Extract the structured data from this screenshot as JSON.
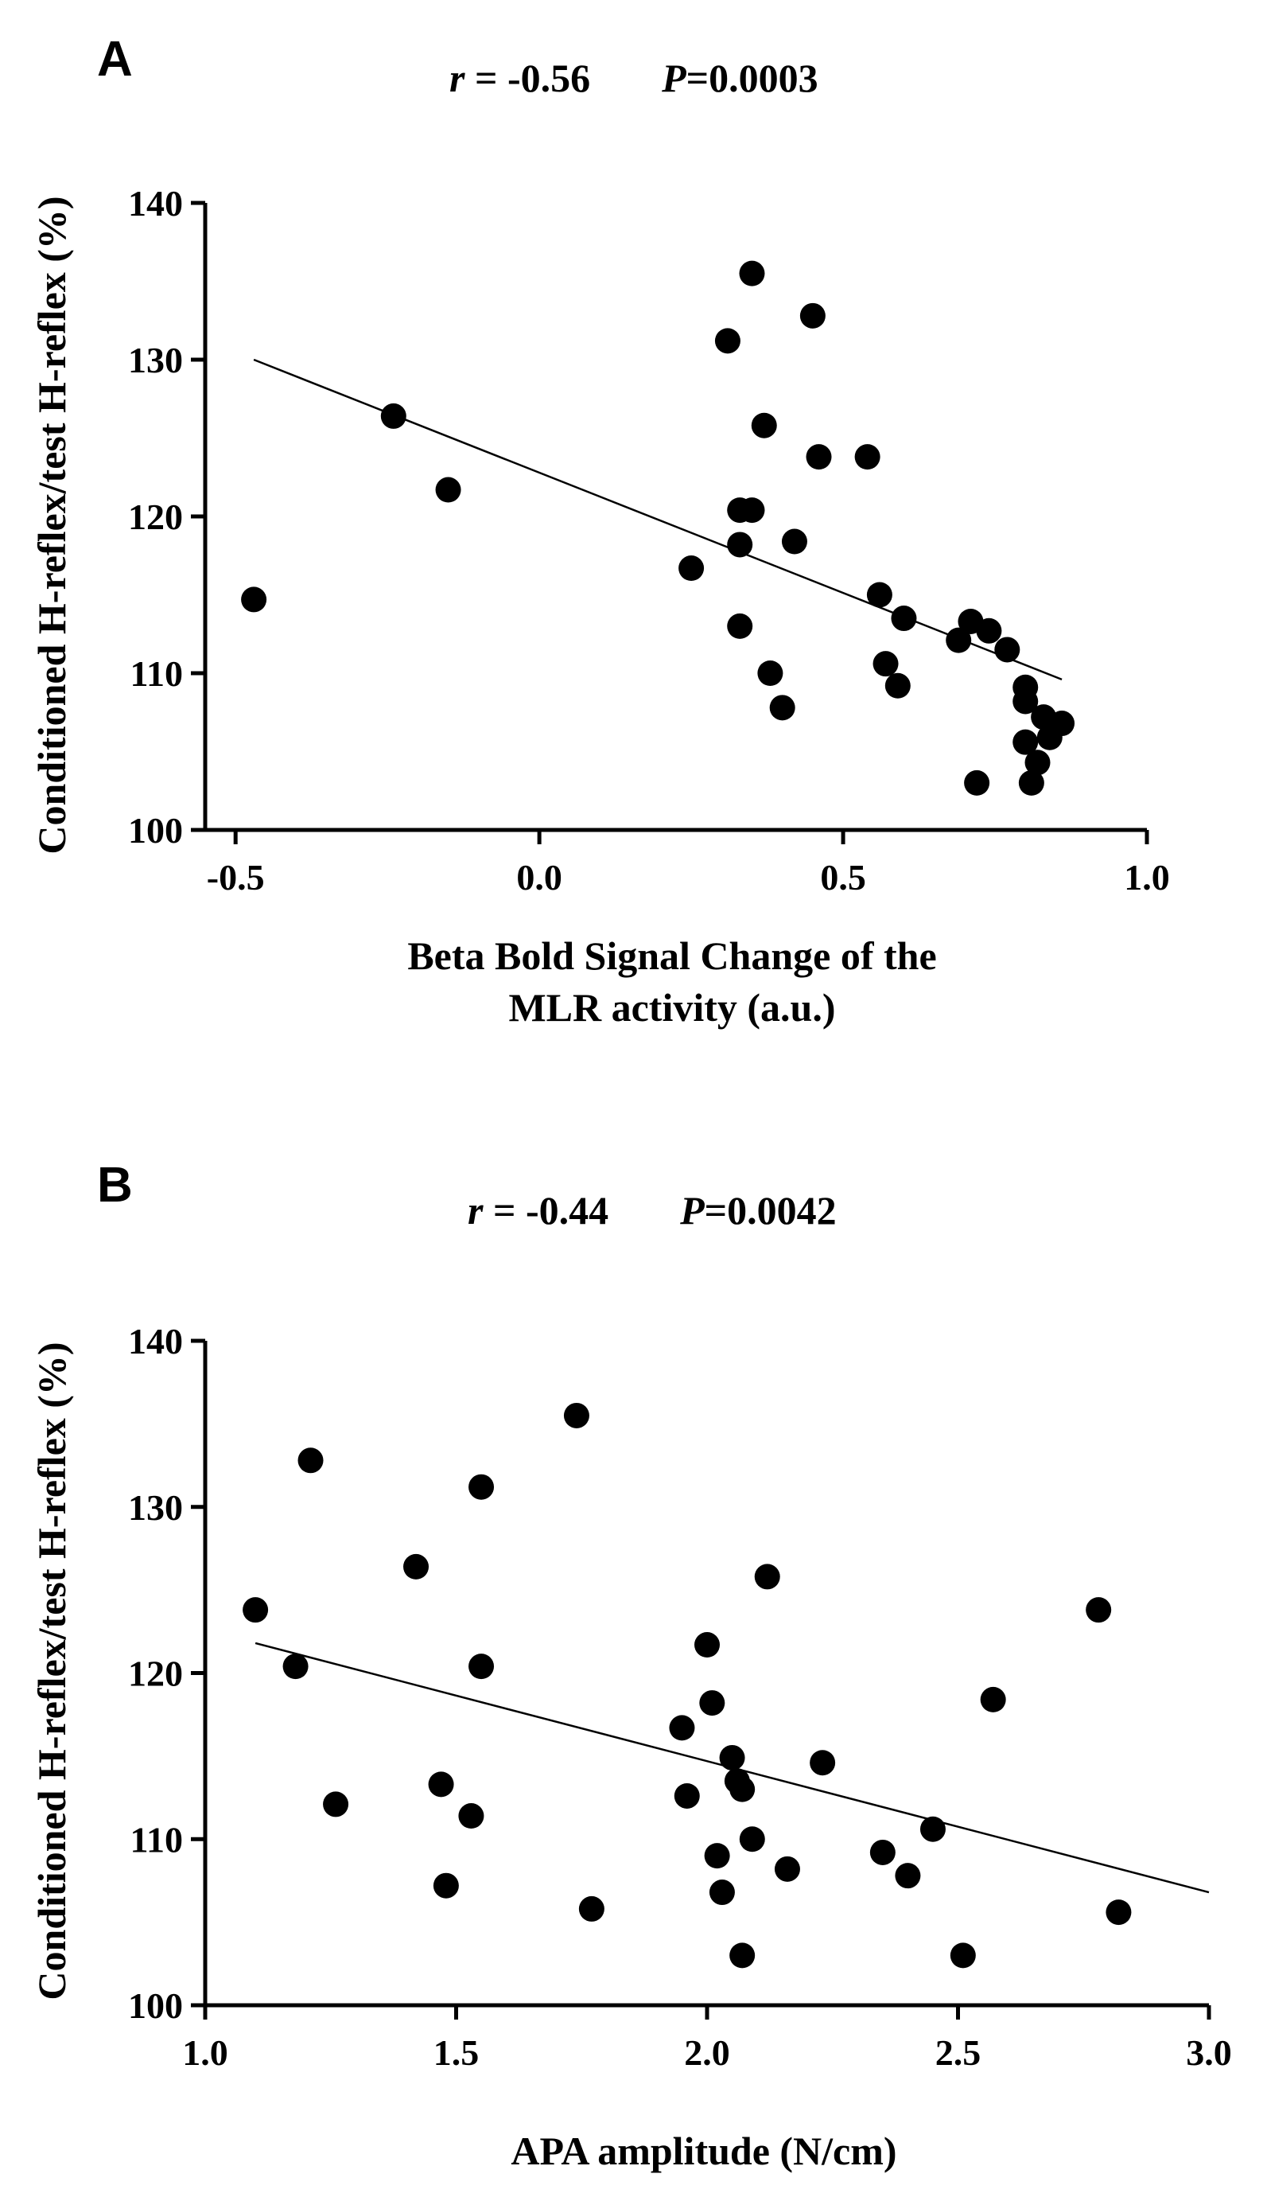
{
  "chart_data": [
    {
      "panel": "A",
      "type": "scatter",
      "stats": {
        "r_label": "r",
        "r_value": " = -0.56",
        "p_label": "P",
        "p_value": "=0.0003"
      },
      "xlabel": [
        "Beta Bold Signal Change of the",
        "MLR activity (a.u.)"
      ],
      "ylabel": "Conditioned H-reflex/test H-reflex (%)",
      "xlim": [
        -0.55,
        1.0
      ],
      "ylim": [
        100,
        140
      ],
      "xticks": [
        -0.5,
        0.0,
        0.5,
        1.0
      ],
      "xtick_labels": [
        "-0.5",
        "0.0",
        "0.5",
        "1.0"
      ],
      "yticks": [
        100,
        110,
        120,
        130,
        140
      ],
      "ytick_labels": [
        "100",
        "110",
        "120",
        "130",
        "140"
      ],
      "regression_line": {
        "x": [
          -0.47,
          0.86
        ],
        "y": [
          130.0,
          109.6
        ]
      },
      "points": [
        {
          "x": -0.47,
          "y": 114.7
        },
        {
          "x": -0.24,
          "y": 126.4
        },
        {
          "x": -0.15,
          "y": 121.7
        },
        {
          "x": 0.25,
          "y": 116.7
        },
        {
          "x": 0.31,
          "y": 131.2
        },
        {
          "x": 0.33,
          "y": 120.4
        },
        {
          "x": 0.33,
          "y": 118.2
        },
        {
          "x": 0.33,
          "y": 113.0
        },
        {
          "x": 0.35,
          "y": 135.5
        },
        {
          "x": 0.35,
          "y": 120.4
        },
        {
          "x": 0.37,
          "y": 125.8
        },
        {
          "x": 0.38,
          "y": 110.0
        },
        {
          "x": 0.4,
          "y": 107.8
        },
        {
          "x": 0.42,
          "y": 118.4
        },
        {
          "x": 0.45,
          "y": 132.8
        },
        {
          "x": 0.46,
          "y": 123.8
        },
        {
          "x": 0.54,
          "y": 123.8
        },
        {
          "x": 0.56,
          "y": 115.0
        },
        {
          "x": 0.57,
          "y": 110.6
        },
        {
          "x": 0.59,
          "y": 109.2
        },
        {
          "x": 0.6,
          "y": 113.5
        },
        {
          "x": 0.69,
          "y": 112.1
        },
        {
          "x": 0.71,
          "y": 113.3
        },
        {
          "x": 0.72,
          "y": 103.0
        },
        {
          "x": 0.74,
          "y": 112.7
        },
        {
          "x": 0.77,
          "y": 111.5
        },
        {
          "x": 0.8,
          "y": 109.1
        },
        {
          "x": 0.8,
          "y": 108.2
        },
        {
          "x": 0.8,
          "y": 105.6
        },
        {
          "x": 0.81,
          "y": 103.0
        },
        {
          "x": 0.82,
          "y": 104.3
        },
        {
          "x": 0.83,
          "y": 107.2
        },
        {
          "x": 0.84,
          "y": 105.9
        },
        {
          "x": 0.86,
          "y": 106.8
        }
      ]
    },
    {
      "panel": "B",
      "type": "scatter",
      "stats": {
        "r_label": "r",
        "r_value": " = -0.44",
        "p_label": "P",
        "p_value": "=0.0042"
      },
      "xlabel": [
        "APA amplitude (N/cm)"
      ],
      "ylabel": "Conditioned H-reflex/test H-reflex (%)",
      "xlim": [
        1.0,
        3.0
      ],
      "ylim": [
        100,
        140
      ],
      "xticks": [
        1.0,
        1.5,
        2.0,
        2.5,
        3.0
      ],
      "xtick_labels": [
        "1.0",
        "1.5",
        "2.0",
        "2.5",
        "3.0"
      ],
      "yticks": [
        100,
        110,
        120,
        130,
        140
      ],
      "ytick_labels": [
        "100",
        "110",
        "120",
        "130",
        "140"
      ],
      "regression_line": {
        "x": [
          1.1,
          3.0
        ],
        "y": [
          121.8,
          106.8
        ]
      },
      "points": [
        {
          "x": 1.1,
          "y": 123.8
        },
        {
          "x": 1.18,
          "y": 120.4
        },
        {
          "x": 1.21,
          "y": 132.8
        },
        {
          "x": 1.26,
          "y": 112.1
        },
        {
          "x": 1.42,
          "y": 126.4
        },
        {
          "x": 1.47,
          "y": 113.3
        },
        {
          "x": 1.48,
          "y": 107.2
        },
        {
          "x": 1.53,
          "y": 111.4
        },
        {
          "x": 1.55,
          "y": 131.2
        },
        {
          "x": 1.55,
          "y": 120.4
        },
        {
          "x": 1.74,
          "y": 135.5
        },
        {
          "x": 1.77,
          "y": 105.8
        },
        {
          "x": 1.95,
          "y": 116.7
        },
        {
          "x": 1.96,
          "y": 112.6
        },
        {
          "x": 2.0,
          "y": 121.7
        },
        {
          "x": 2.01,
          "y": 118.2
        },
        {
          "x": 2.02,
          "y": 109.0
        },
        {
          "x": 2.03,
          "y": 106.8
        },
        {
          "x": 2.05,
          "y": 114.9
        },
        {
          "x": 2.06,
          "y": 113.5
        },
        {
          "x": 2.07,
          "y": 113.0
        },
        {
          "x": 2.07,
          "y": 103.0
        },
        {
          "x": 2.09,
          "y": 110.0
        },
        {
          "x": 2.12,
          "y": 125.8
        },
        {
          "x": 2.16,
          "y": 108.2
        },
        {
          "x": 2.23,
          "y": 114.6
        },
        {
          "x": 2.35,
          "y": 109.2
        },
        {
          "x": 2.4,
          "y": 107.8
        },
        {
          "x": 2.45,
          "y": 110.6
        },
        {
          "x": 2.51,
          "y": 103.0
        },
        {
          "x": 2.57,
          "y": 118.4
        },
        {
          "x": 2.78,
          "y": 123.8
        },
        {
          "x": 2.82,
          "y": 105.6
        }
      ]
    }
  ]
}
